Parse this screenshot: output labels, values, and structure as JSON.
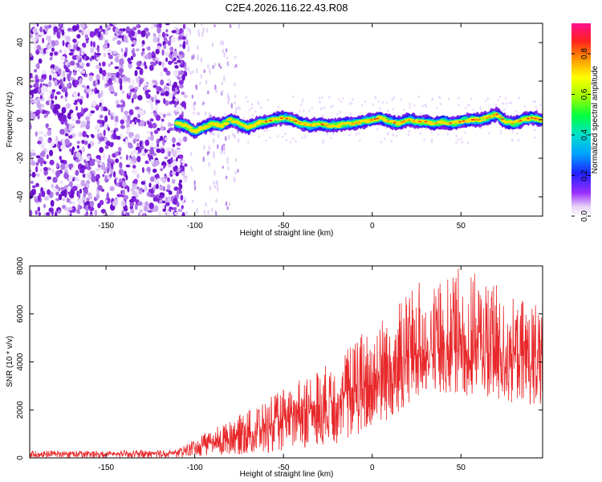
{
  "title": "C2E4.2026.116.22.43.R08",
  "colors": {
    "snr_line": "#e8282a",
    "scatter_noise": "#8a2be2",
    "axis": "#000000"
  },
  "chart_data": [
    {
      "type": "heatmap",
      "name": "spectrogram",
      "xlabel": "Height of straight line (km)",
      "ylabel": "Frequency (Hz)",
      "xlim": [
        -193,
        96
      ],
      "ylim": [
        -50,
        50
      ],
      "xticks": [
        -150,
        -100,
        -50,
        0,
        50
      ],
      "yticks": [
        -40,
        -20,
        0,
        20,
        40
      ],
      "noise_region_x": [
        -193,
        -105
      ],
      "signal_start_x": -110,
      "track": {
        "x": [
          -110,
          -105,
          -100,
          -95,
          -90,
          -85,
          -80,
          -75,
          -70,
          -65,
          -60,
          -55,
          -50,
          -45,
          -40,
          -35,
          -30,
          -25,
          -20,
          -15,
          -10,
          -5,
          0,
          5,
          10,
          15,
          20,
          25,
          30,
          35,
          40,
          45,
          50,
          55,
          60,
          65,
          70,
          75,
          80,
          85,
          90,
          95
        ],
        "freq": [
          -2,
          -3,
          -6,
          -4,
          -2,
          -3,
          0,
          -2,
          -4,
          -2,
          -1,
          0,
          1,
          0,
          -2,
          -3,
          -2,
          -3,
          -3,
          -2,
          -2,
          -1,
          0,
          1,
          -1,
          -2,
          0,
          -1,
          -1,
          -2,
          -1,
          -2,
          -1,
          0,
          0,
          1,
          3,
          -1,
          -2,
          0,
          1,
          0
        ]
      },
      "colorbar": {
        "label": "Normalized spectral amplitude",
        "ticks": [
          "0.0",
          "0.2",
          "0.4",
          "0.6",
          "0.8"
        ],
        "range": [
          0,
          0.95
        ]
      }
    },
    {
      "type": "line",
      "name": "snr",
      "xlabel": "Height of straight line (km)",
      "ylabel": "SNR (10 * v/v)",
      "xlim": [
        -193,
        96
      ],
      "ylim": [
        0,
        8000
      ],
      "xticks": [
        -150,
        -100,
        -50,
        0,
        50
      ],
      "yticks": [
        0,
        2000,
        4000,
        6000,
        8000
      ],
      "envelope": {
        "x": [
          -193,
          -150,
          -110,
          -100,
          -90,
          -80,
          -70,
          -60,
          -50,
          -40,
          -30,
          -20,
          -10,
          0,
          10,
          20,
          30,
          40,
          50,
          60,
          70,
          80,
          90,
          96
        ],
        "lo": [
          0,
          0,
          0,
          50,
          100,
          100,
          150,
          200,
          300,
          400,
          500,
          600,
          900,
          1200,
          1600,
          2200,
          2600,
          2600,
          2600,
          2600,
          2400,
          2200,
          2200,
          2200
        ],
        "mid": [
          150,
          150,
          200,
          400,
          600,
          800,
          1000,
          1200,
          1500,
          1800,
          2000,
          2300,
          2700,
          3100,
          3500,
          3900,
          4200,
          4300,
          4400,
          4400,
          4300,
          4100,
          4000,
          4000
        ],
        "hi": [
          300,
          300,
          350,
          800,
          1200,
          1600,
          2000,
          2400,
          2900,
          3300,
          3700,
          4200,
          5000,
          5600,
          6200,
          7000,
          7500,
          7600,
          8000,
          7600,
          7200,
          6700,
          6500,
          6500
        ]
      }
    }
  ]
}
